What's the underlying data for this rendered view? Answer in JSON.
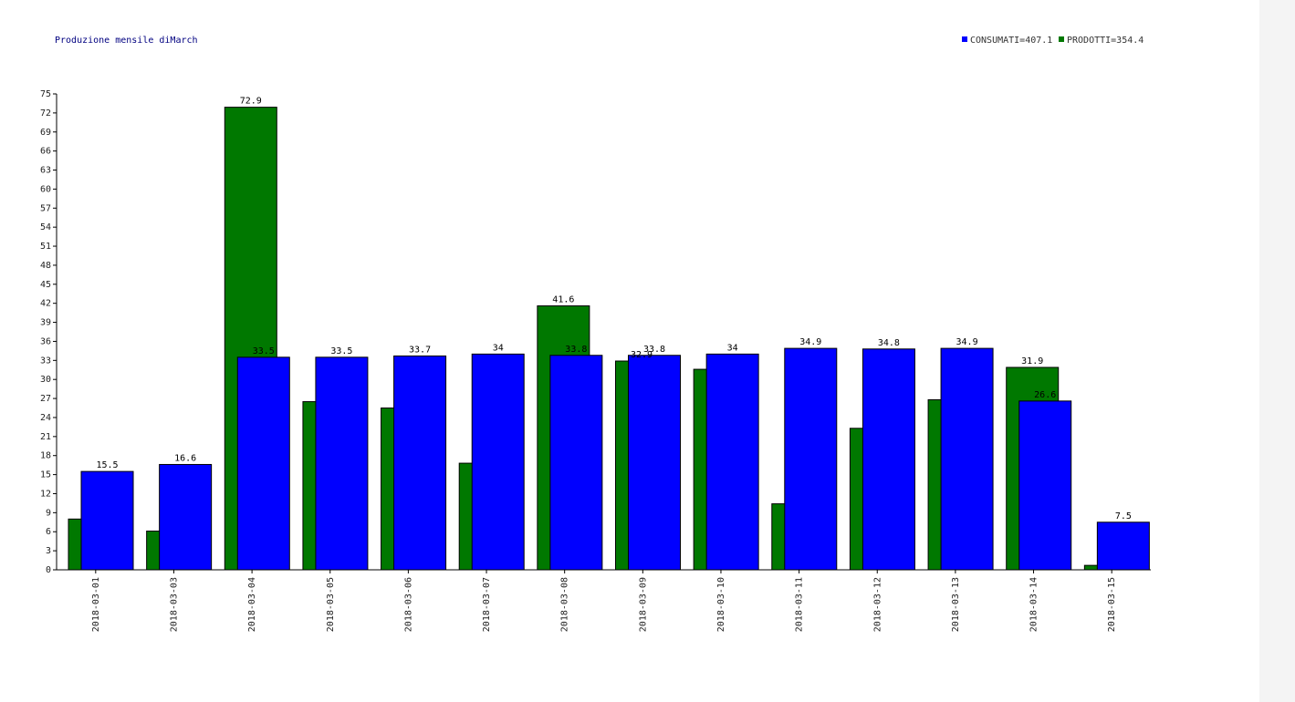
{
  "chart_data": {
    "type": "bar",
    "title": "Produzione mensile diMarch",
    "xlabel": "",
    "ylabel": "",
    "ylim": [
      0,
      75
    ],
    "yticks": [
      0,
      3,
      6,
      9,
      12,
      15,
      18,
      21,
      24,
      27,
      30,
      33,
      36,
      39,
      42,
      45,
      48,
      51,
      54,
      57,
      60,
      63,
      66,
      69,
      72,
      75
    ],
    "grid": false,
    "legend_position": "top-right",
    "legend_entries": [
      "CONSUMATI=407.1",
      "PRODOTTI=354.4"
    ],
    "categories": [
      "2018-03-01",
      "2018-03-03",
      "2018-03-04",
      "2018-03-05",
      "2018-03-06",
      "2018-03-07",
      "2018-03-08",
      "2018-03-09",
      "2018-03-10",
      "2018-03-11",
      "2018-03-12",
      "2018-03-13",
      "2018-03-14",
      "2018-03-15"
    ],
    "series": [
      {
        "name": "PRODOTTI",
        "color": "#007800",
        "values": [
          8,
          6.1,
          72.9,
          26.5,
          25.5,
          16.8,
          41.6,
          32.9,
          31.6,
          10.4,
          22.3,
          26.8,
          31.9,
          0.7
        ],
        "labels": [
          "",
          "",
          "72.9",
          "",
          "",
          "",
          "41.6",
          "32.9",
          "",
          "",
          "",
          "",
          "31.9",
          ""
        ]
      },
      {
        "name": "CONSUMATI",
        "color": "#0000ff",
        "values": [
          15.5,
          16.6,
          33.5,
          33.5,
          33.7,
          34,
          33.8,
          33.8,
          34,
          34.9,
          34.8,
          34.9,
          26.6,
          7.5
        ],
        "labels": [
          "15.5",
          "16.6",
          "33.5",
          "33.5",
          "33.7",
          "34",
          "33.8",
          "33.8",
          "34",
          "34.9",
          "34.8",
          "34.9",
          "26.6",
          "7.5"
        ]
      }
    ]
  }
}
